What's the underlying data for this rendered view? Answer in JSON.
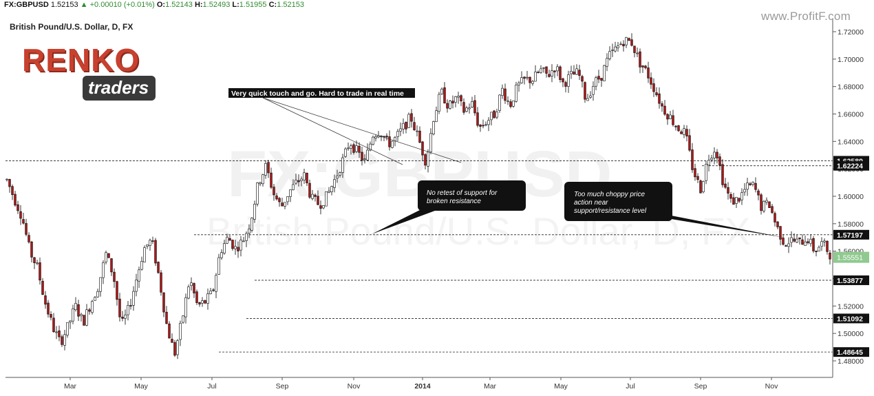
{
  "header": {
    "symbol": "FX:GBPUSD",
    "last": "1.52153",
    "change": "▲ +0.00010 (+0.01%)",
    "open_label": "O:",
    "open": "1.52143",
    "high_label": "H:",
    "high": "1.52493",
    "low_label": "L:",
    "low": "1.51955",
    "close_label": "C:",
    "close": "1.52153"
  },
  "chart_title": "British Pound/U.S. Dollar, D, FX",
  "site_watermark": "www.ProfitF.com",
  "logo": {
    "line1": "RENKO",
    "line2": "traders"
  },
  "colors": {
    "bull": "#ffffff",
    "bear": "#b01515",
    "wick": "#000000",
    "accent_green": "#2e8b2e",
    "last_price_bg": "#8fc98f"
  },
  "annotations": [
    {
      "id": "quick-touch",
      "text": "Very quick touch and go. Hard to trade in real time"
    },
    {
      "id": "no-retest",
      "text": "No retest of support for broken resistance"
    },
    {
      "id": "choppy",
      "text": "Too much choppy price action near support/resistance level"
    }
  ],
  "chart_data": {
    "type": "candlestick",
    "title": "British Pound/U.S. Dollar, D, FX",
    "x_tick_labels": [
      "Mar",
      "May",
      "Jul",
      "Sep",
      "Nov",
      "2014",
      "Mar",
      "May",
      "Jul",
      "Sep",
      "Nov"
    ],
    "y_ticks": [
      "1.72000",
      "1.70000",
      "1.68000",
      "1.66000",
      "1.64000",
      "1.62000",
      "1.60000",
      "1.58000",
      "1.56000",
      "1.54000",
      "1.52000",
      "1.50000",
      "1.48000"
    ],
    "ylim": [
      1.474,
      1.728
    ],
    "horizontal_levels": [
      1.62589,
      1.62224,
      1.57197,
      1.53877,
      1.51092,
      1.48645
    ],
    "level_labels": [
      "1.62589",
      "1.62224",
      "1.57197",
      "1.53877",
      "1.51092",
      "1.48645"
    ],
    "last_price_label": "1.55551",
    "price_path": [
      [
        1.612,
        1.612
      ],
      [
        1.598,
        1.61
      ],
      [
        1.585,
        1.57
      ],
      [
        1.56,
        1.565
      ],
      [
        1.548,
        1.54
      ],
      [
        1.523,
        1.512
      ],
      [
        1.505,
        1.5
      ],
      [
        1.493,
        1.485
      ],
      [
        1.505,
        1.515
      ],
      [
        1.52,
        1.512
      ],
      [
        1.508,
        1.525
      ],
      [
        1.522,
        1.518
      ],
      [
        1.535,
        1.55
      ],
      [
        1.558,
        1.548
      ],
      [
        1.542,
        1.515
      ],
      [
        1.505,
        1.508
      ],
      [
        1.518,
        1.528
      ],
      [
        1.54,
        1.552
      ],
      [
        1.562,
        1.565
      ],
      [
        1.568,
        1.548
      ],
      [
        1.54,
        1.52
      ],
      [
        1.505,
        1.49
      ],
      [
        1.485,
        1.5
      ],
      [
        1.51,
        1.528
      ],
      [
        1.54,
        1.53
      ],
      [
        1.52,
        1.512
      ],
      [
        1.523,
        1.532
      ],
      [
        1.53,
        1.545
      ],
      [
        1.56,
        1.565
      ],
      [
        1.57,
        1.562
      ],
      [
        1.562,
        1.556
      ],
      [
        1.568,
        1.578
      ],
      [
        1.582,
        1.596
      ],
      [
        1.61,
        1.612
      ],
      [
        1.622,
        1.614
      ],
      [
        1.602,
        1.596
      ],
      [
        1.592,
        1.598
      ],
      [
        1.603,
        1.605
      ],
      [
        1.61,
        1.622
      ],
      [
        1.615,
        1.608
      ],
      [
        1.598,
        1.602
      ],
      [
        1.594,
        1.59
      ],
      [
        1.6,
        1.605
      ],
      [
        1.612,
        1.618
      ],
      [
        1.625,
        1.63
      ],
      [
        1.64,
        1.635
      ],
      [
        1.632,
        1.628
      ],
      [
        1.625,
        1.636
      ],
      [
        1.645,
        1.652
      ],
      [
        1.648,
        1.655
      ],
      [
        1.638,
        1.645
      ],
      [
        1.642,
        1.638
      ],
      [
        1.65,
        1.66
      ],
      [
        1.658,
        1.65
      ],
      [
        1.642,
        1.64
      ],
      [
        1.625,
        1.64
      ],
      [
        1.658,
        1.672
      ],
      [
        1.676,
        1.668
      ],
      [
        1.665,
        1.675
      ],
      [
        1.672,
        1.665
      ],
      [
        1.662,
        1.672
      ],
      [
        1.668,
        1.658
      ],
      [
        1.65,
        1.648
      ],
      [
        1.655,
        1.662
      ],
      [
        1.66,
        1.672
      ],
      [
        1.678,
        1.67
      ],
      [
        1.666,
        1.675
      ],
      [
        1.68,
        1.682
      ],
      [
        1.685,
        1.682
      ],
      [
        1.685,
        1.688
      ],
      [
        1.692,
        1.69
      ],
      [
        1.688,
        1.698
      ],
      [
        1.695,
        1.685
      ],
      [
        1.682,
        1.69
      ],
      [
        1.688,
        1.682
      ],
      [
        1.69,
        1.68
      ],
      [
        1.67,
        1.676
      ],
      [
        1.682,
        1.68
      ],
      [
        1.688,
        1.696
      ],
      [
        1.702,
        1.7
      ],
      [
        1.708,
        1.715
      ],
      [
        1.714,
        1.708
      ],
      [
        1.712,
        1.706
      ],
      [
        1.698,
        1.7
      ],
      [
        1.69,
        1.68
      ],
      [
        1.678,
        1.67
      ],
      [
        1.665,
        1.66
      ],
      [
        1.658,
        1.655
      ],
      [
        1.65,
        1.652
      ],
      [
        1.646,
        1.635
      ],
      [
        1.62,
        1.615
      ],
      [
        1.605,
        1.618
      ],
      [
        1.628,
        1.64
      ],
      [
        1.636,
        1.624
      ],
      [
        1.61,
        1.6
      ],
      [
        1.596,
        1.59
      ],
      [
        1.598,
        1.61
      ],
      [
        1.606,
        1.6
      ],
      [
        1.608,
        1.6
      ],
      [
        1.592,
        1.59
      ],
      [
        1.595,
        1.58
      ],
      [
        1.578,
        1.57
      ],
      [
        1.566,
        1.565
      ],
      [
        1.568,
        1.57
      ],
      [
        1.566,
        1.572
      ],
      [
        1.57,
        1.565
      ],
      [
        1.56,
        1.568
      ],
      [
        1.566,
        1.562
      ],
      [
        1.558,
        1.556
      ]
    ]
  }
}
